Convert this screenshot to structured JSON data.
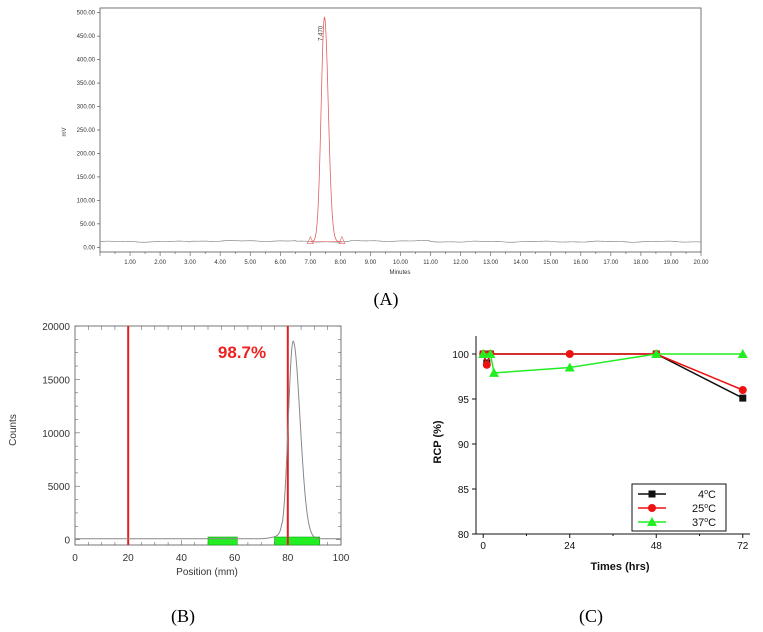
{
  "panels": {
    "a": {
      "label": "(A)"
    },
    "b": {
      "label": "(B)"
    },
    "c": {
      "label": "(C)"
    }
  },
  "chart_data": [
    {
      "id": "A",
      "type": "line",
      "title": "",
      "xlabel": "Minutes",
      "ylabel": "mV",
      "xlim": [
        0,
        20.0
      ],
      "ylim": [
        -10,
        510
      ],
      "xticks": [
        1,
        2,
        3,
        4,
        5,
        6,
        7,
        8,
        9,
        10,
        11,
        12,
        13,
        14,
        15,
        16,
        17,
        18,
        19,
        20
      ],
      "xtick_labels": [
        "1.00",
        "2.00",
        "3.00",
        "4.00",
        "5.00",
        "6.00",
        "7.00",
        "8.00",
        "9.00",
        "10.00",
        "11.00",
        "12.00",
        "13.00",
        "14.00",
        "15.00",
        "16.00",
        "17.00",
        "18.00",
        "19.00",
        "20.00"
      ],
      "yticks": [
        0,
        50,
        100,
        150,
        200,
        250,
        300,
        350,
        400,
        450,
        500
      ],
      "ytick_labels": [
        "0.00",
        "50.00",
        "100.00",
        "150.00",
        "200.00",
        "250.00",
        "300.00",
        "350.00",
        "400.00",
        "450.00",
        "500.00"
      ],
      "baseline": 12,
      "peak": {
        "retention": 7.47,
        "height": 490,
        "sigma": 0.11,
        "label": "7.470",
        "integration_start": 7.0,
        "integration_end": 8.05
      },
      "colors": {
        "trace": "#8a8a8a",
        "peak": "#e06060",
        "axes": "#555555"
      }
    },
    {
      "id": "B",
      "type": "line",
      "title": "",
      "xlabel": "Position (mm)",
      "ylabel": "Counts",
      "xlim": [
        0,
        100
      ],
      "ylim": [
        -500,
        20000
      ],
      "xticks": [
        0,
        20,
        40,
        60,
        80,
        100
      ],
      "xtick_labels": [
        "0",
        "20",
        "40",
        "60",
        "80",
        "100"
      ],
      "yticks": [
        0,
        5000,
        10000,
        15000,
        20000
      ],
      "ytick_labels": [
        "0",
        "5000",
        "10000",
        "15000",
        "20000"
      ],
      "peak": {
        "center": 82,
        "height": 18500,
        "sigma_left": 1.8,
        "sigma_right": 2.6
      },
      "region_markers": [
        20,
        80
      ],
      "roi_bars": [
        [
          50,
          61
        ],
        [
          75,
          92
        ]
      ],
      "annotation": "98.7%",
      "colors": {
        "trace": "#888888",
        "marker": "#e02020",
        "roi": "#22ee22",
        "annotation": "#ee2020"
      }
    },
    {
      "id": "C",
      "type": "line",
      "title": "",
      "xlabel": "Times (hrs)",
      "ylabel": "RCP (%)",
      "xlim": [
        -2,
        74
      ],
      "ylim": [
        80,
        102
      ],
      "xticks": [
        0,
        24,
        48,
        72
      ],
      "xtick_labels": [
        "0",
        "24",
        "48",
        "72"
      ],
      "yticks": [
        80,
        85,
        90,
        95,
        100
      ],
      "ytick_labels": [
        "80",
        "85",
        "90",
        "95",
        "100"
      ],
      "series": [
        {
          "name": "4°C",
          "x": [
            0,
            1,
            2,
            48,
            72
          ],
          "y": [
            100,
            99,
            100,
            100,
            95.1
          ],
          "color": "#111111",
          "marker": "square"
        },
        {
          "name": "25°C",
          "x": [
            0,
            1,
            2,
            24,
            48,
            72
          ],
          "y": [
            100,
            98.8,
            100,
            100,
            100,
            96
          ],
          "color": "#ee1111",
          "marker": "circle"
        },
        {
          "name": "37°C",
          "x": [
            0,
            2,
            3,
            24,
            48,
            72
          ],
          "y": [
            100,
            100,
            97.9,
            98.5,
            100,
            100
          ],
          "color": "#22ee22",
          "marker": "triangle"
        }
      ],
      "legend": {
        "position": "bottom-right",
        "entries": [
          {
            "base": "4",
            "sup": "o",
            "unit": "C"
          },
          {
            "base": "25",
            "sup": "o",
            "unit": "C"
          },
          {
            "base": "37",
            "sup": "o",
            "unit": "C"
          }
        ]
      }
    }
  ]
}
